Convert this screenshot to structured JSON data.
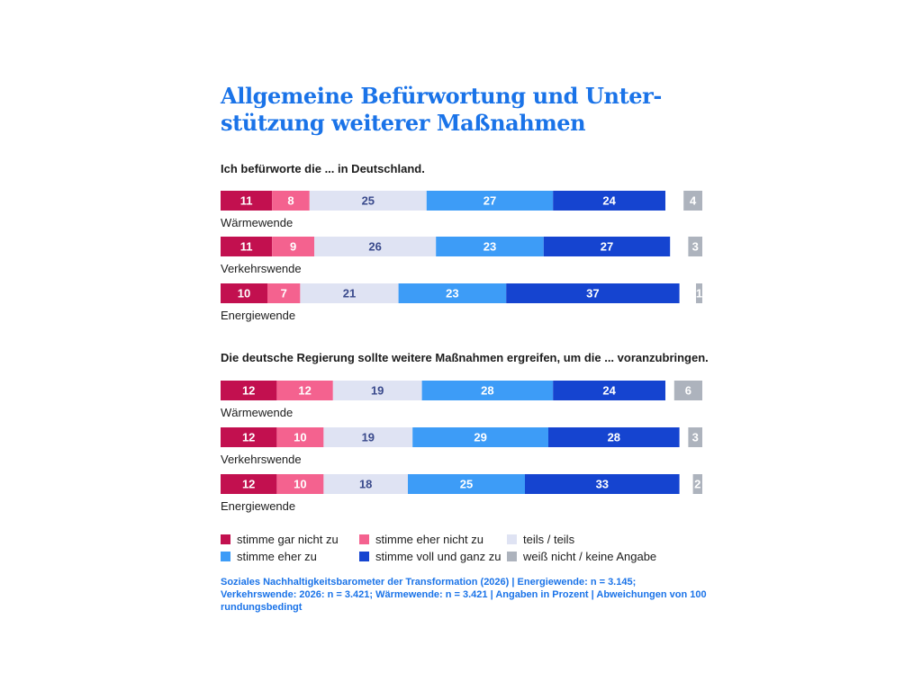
{
  "title": "Allgemeine Befürwortung und Unter-stützung weiterer Maßnahmen",
  "title_lines": [
    "Allgemeine Befürwortung und Unter-",
    "stützung weiterer Maßnahmen"
  ],
  "colors": {
    "stimme_gar_nicht_zu": "#c2104f",
    "stimme_eher_nicht_zu": "#f4628f",
    "teils_teils": "#dfe3f3",
    "stimme_eher_zu": "#3d9cf7",
    "stimme_voll_und_ganz_zu": "#1544d0",
    "weiss_nicht": "#adb3bd",
    "label_light": "#ffffff",
    "label_dark": "#3a4a8c"
  },
  "chart_data": {
    "type": "bar",
    "orientation": "horizontal-stacked",
    "unit": "Prozent",
    "legend_placement": "bottom",
    "series_names": [
      "stimme gar nicht zu",
      "stimme eher nicht zu",
      "teils / teils",
      "stimme eher zu",
      "stimme voll und ganz zu",
      "weiß nicht / keine Angabe"
    ],
    "sections": [
      {
        "title": "Ich befürworte die ... in Deutschland.",
        "rows": [
          {
            "label": "Wärmewende",
            "values": [
              11,
              8,
              25,
              27,
              24
            ],
            "unknown": 4
          },
          {
            "label": "Verkehrswende",
            "values": [
              11,
              9,
              26,
              23,
              27
            ],
            "unknown": 3
          },
          {
            "label": "Energiewende",
            "values": [
              10,
              7,
              21,
              23,
              37
            ],
            "unknown": 1
          }
        ]
      },
      {
        "title": "Die deutsche Regierung sollte weitere Maßnahmen ergreifen, um die ... voranzubringen.",
        "rows": [
          {
            "label": "Wärmewende",
            "values": [
              12,
              12,
              19,
              28,
              24
            ],
            "unknown": 6
          },
          {
            "label": "Verkehrswende",
            "values": [
              12,
              10,
              19,
              29,
              28
            ],
            "unknown": 3
          },
          {
            "label": "Energiewende",
            "values": [
              12,
              10,
              18,
              25,
              33
            ],
            "unknown": 2
          }
        ]
      }
    ]
  },
  "legend": [
    {
      "label": "stimme gar nicht zu",
      "color": "#c2104f"
    },
    {
      "label": "stimme eher nicht zu",
      "color": "#f4628f"
    },
    {
      "label": "teils / teils",
      "color": "#dfe3f3"
    },
    {
      "label": "stimme eher zu",
      "color": "#3d9cf7"
    },
    {
      "label": "stimme voll und ganz zu",
      "color": "#1544d0"
    },
    {
      "label": "weiß nicht / keine Angabe",
      "color": "#adb3bd"
    }
  ],
  "footnote": "Soziales Nachhaltigkeitsbarometer der Transformation (2026) | Energiewende: n = 3.145; Verkehrswende: 2026: n = 3.421; Wärmewende: n = 3.421 | Angaben in Prozent | Abweichungen von 100 rundungsbedingt"
}
